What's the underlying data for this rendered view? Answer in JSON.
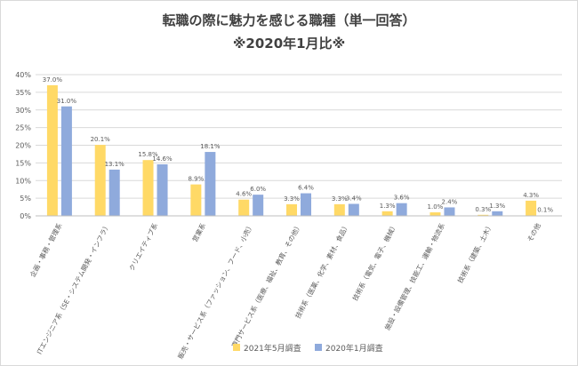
{
  "chart_data": {
    "type": "bar",
    "title": "転職の際に魅力を感じる職種（単一回答）",
    "subtitle": "※2020年1月比※",
    "categories": [
      "企画・事務・管理系",
      "ITエンジニア系（SE・システム開発・インフラ）",
      "クリエイティブ系",
      "営業系",
      "販売・サービス系（ファッション、フード、小売）",
      "専門サービス系（医療、福祉、教育、その他）",
      "技術系（医薬、化学、素材、食品）",
      "技術系（電気、電子、機械）",
      "施設・設備管理、技能工、運輸・物流系",
      "技術系（建築、土木）",
      "その他"
    ],
    "series": [
      {
        "name": "2021年5月調査",
        "color": "#ffd966",
        "values": [
          37.0,
          20.1,
          15.8,
          8.9,
          4.6,
          3.3,
          3.3,
          1.3,
          1.0,
          0.3,
          4.3
        ]
      },
      {
        "name": "2020年1月調査",
        "color": "#8faadc",
        "values": [
          31.0,
          13.1,
          14.6,
          18.1,
          6.0,
          6.4,
          3.4,
          3.6,
          2.4,
          1.3,
          0.1
        ]
      }
    ],
    "ylim": [
      0,
      40
    ],
    "yticks": [
      0,
      5,
      10,
      15,
      20,
      25,
      30,
      35,
      40
    ],
    "ytick_labels": [
      "0%",
      "5%",
      "10%",
      "15%",
      "20%",
      "25%",
      "30%",
      "35%",
      "40%"
    ],
    "value_labels": [
      [
        "37.0%",
        "20.1%",
        "15.8%",
        "8.9%",
        "4.6%",
        "3.3%",
        "3.3%",
        "1.3%",
        "1.0%",
        "0.3%",
        "4.3%"
      ],
      [
        "31.0%",
        "13.1%",
        "14.6%",
        "18.1%",
        "6.0%",
        "6.4%",
        "3.4%",
        "3.6%",
        "2.4%",
        "1.3%",
        "0.1%"
      ]
    ],
    "grid": true,
    "legend_position": "bottom"
  }
}
